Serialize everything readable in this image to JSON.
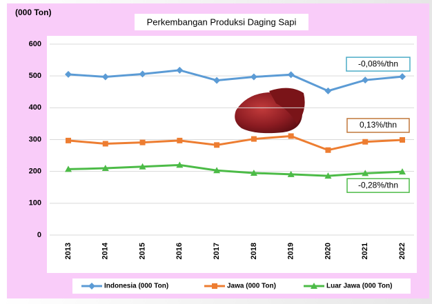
{
  "chart_data": {
    "type": "line",
    "title": "Perkembangan Produksi Daging Sapi",
    "y_label": "(000 Ton)",
    "categories": [
      "2013",
      "2014",
      "2015",
      "2016",
      "2017",
      "2018",
      "2019",
      "2020",
      "2021",
      "2022"
    ],
    "series": [
      {
        "name": "Indonesia (000 Ton)",
        "color": "#5b9bd5",
        "marker": "diamond",
        "values": [
          505,
          497,
          506,
          518,
          486,
          497,
          504,
          453,
          487,
          498
        ]
      },
      {
        "name": "Jawa (000 Ton)",
        "color": "#ed7d31",
        "marker": "square",
        "values": [
          297,
          287,
          291,
          297,
          283,
          302,
          311,
          267,
          293,
          299
        ]
      },
      {
        "name": "Luar Jawa (000 Ton)",
        "color": "#4cbb47",
        "marker": "triangle",
        "values": [
          207,
          210,
          215,
          220,
          203,
          195,
          191,
          186,
          194,
          199
        ]
      }
    ],
    "annotations": [
      {
        "text": "-0,08%/thn",
        "color": "#4bacc6"
      },
      {
        "text": "0,13%/thn",
        "color": "#c0773a"
      },
      {
        "text": "-0,28%/thn",
        "color": "#4cbb47"
      }
    ],
    "ylim": [
      0,
      600
    ],
    "yticks": [
      0,
      100,
      200,
      300,
      400,
      500,
      600
    ],
    "grid": true,
    "legend": "bottom"
  }
}
